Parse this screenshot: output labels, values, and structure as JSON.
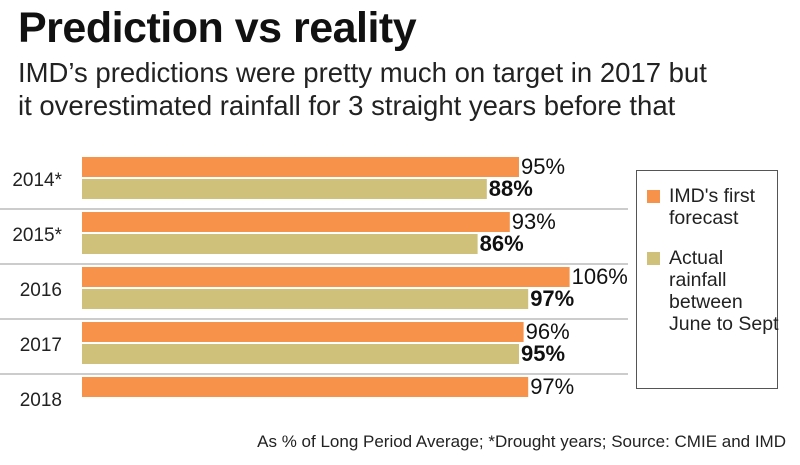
{
  "title": "Prediction vs reality",
  "subtitle_lines": [
    "IMD’s predictions were pretty much on target in 2017 but",
    "it overestimated rainfall for 3 straight years before that"
  ],
  "footnote": "As % of Long Period Average; *Drought years; Source: CMIE and IMD",
  "legend": {
    "forecast_label": "IMD's first forecast",
    "actual_label": "Actual rainfall between June to Sept"
  },
  "colors": {
    "forecast": "#f7924b",
    "actual": "#cfc07a",
    "separator": "#999999"
  },
  "chart_data": {
    "type": "bar",
    "orientation": "horizontal",
    "categories": [
      "2014*",
      "2015*",
      "2016",
      "2017",
      "2018"
    ],
    "series": [
      {
        "name": "IMD's first forecast",
        "values": [
          95,
          93,
          106,
          96,
          97
        ],
        "labels": [
          "95%",
          "93%",
          "106%",
          "96%",
          "97%"
        ]
      },
      {
        "name": "Actual rainfall between June to Sept",
        "values": [
          88,
          86,
          97,
          95,
          null
        ],
        "labels": [
          "88%",
          "86%",
          "97%",
          "95%",
          ""
        ]
      }
    ],
    "title": "Prediction vs reality",
    "xlabel": "",
    "ylabel": "",
    "grid": false,
    "legend_position": "right"
  }
}
